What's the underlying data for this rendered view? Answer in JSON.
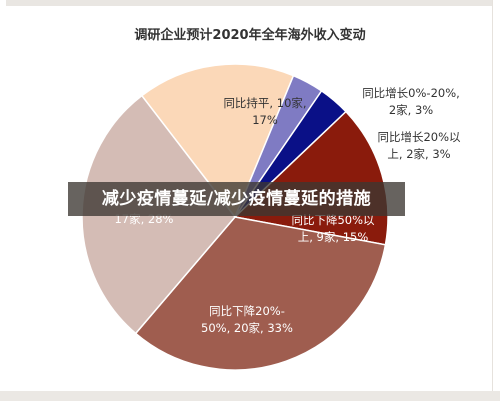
{
  "chart_data": {
    "type": "pie",
    "title": "调研企业预计2020年全年海外收入变动",
    "slices": [
      {
        "label_lines": [
          "同比持平, 10家,",
          "17%"
        ],
        "count": 10,
        "percent": 17,
        "color": "#fbd8b8"
      },
      {
        "label_lines": [
          "同比增长0%-20%,",
          "2家, 3%"
        ],
        "count": 2,
        "percent": 3,
        "color": "#7f7bc3"
      },
      {
        "label_lines": [
          "同比增长20%以",
          "上, 2家, 3%"
        ],
        "count": 2,
        "percent": 3,
        "color": "#0a1087"
      },
      {
        "label_lines": [
          "同比下降50%以",
          "上, 9家, 15%"
        ],
        "count": 9,
        "percent": 15,
        "color": "#8a1b0c"
      },
      {
        "label_lines": [
          "同比下降20%-",
          "50%, 20家, 33%"
        ],
        "count": 20,
        "percent": 33,
        "color": "#9f5d4f"
      },
      {
        "label_lines": [
          "17家, 28%"
        ],
        "count": 17,
        "percent": 28,
        "color": "#d4bcb5"
      }
    ]
  },
  "overlay": {
    "banner_text": "减少疫情蔓延/减少疫情蔓延的措施"
  }
}
